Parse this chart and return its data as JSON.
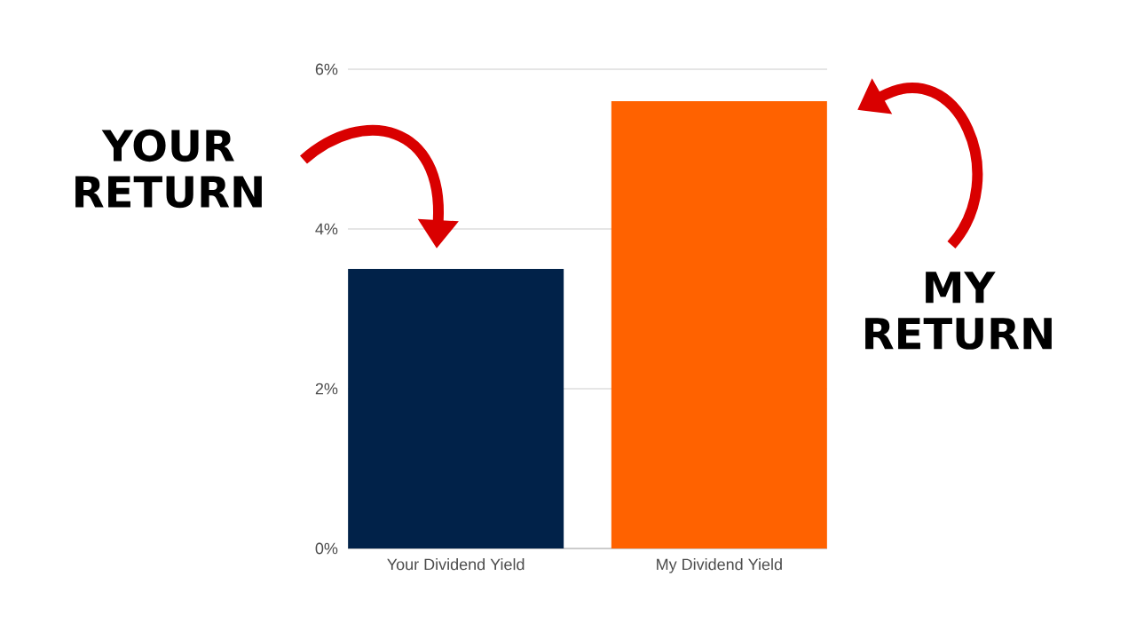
{
  "chart_data": {
    "type": "bar",
    "categories": [
      "Your Dividend Yield",
      "My Dividend Yield"
    ],
    "values": [
      3.5,
      5.6
    ],
    "colors": [
      "#012249",
      "#ff6200"
    ],
    "ylim": [
      0,
      6
    ],
    "yticks": [
      {
        "value": 0,
        "label": "0%"
      },
      {
        "value": 2,
        "label": "2%"
      },
      {
        "value": 4,
        "label": "4%"
      },
      {
        "value": 6,
        "label": "6%"
      }
    ],
    "grid": "y",
    "annotations": [
      "YOUR RETURN",
      "MY RETURN"
    ]
  }
}
